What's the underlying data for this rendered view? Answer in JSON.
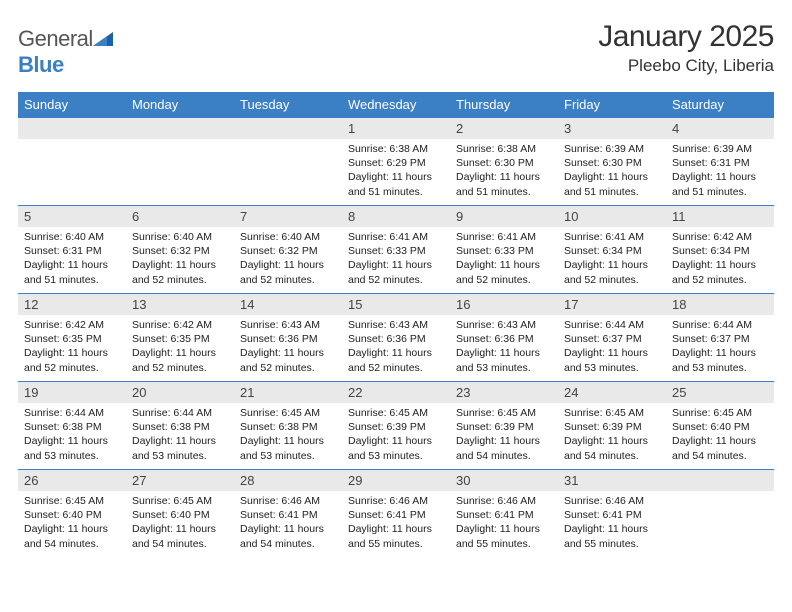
{
  "logo": {
    "text_a": "General",
    "text_b": "Blue"
  },
  "title": "January 2025",
  "location": "Pleebo City, Liberia",
  "colors": {
    "header_bg": "#3b7fc4",
    "header_fg": "#ffffff",
    "daynum_bg": "#e9e9e9",
    "row_border": "#3b7fc4",
    "logo_blue": "#3b7fc4"
  },
  "day_headers": [
    "Sunday",
    "Monday",
    "Tuesday",
    "Wednesday",
    "Thursday",
    "Friday",
    "Saturday"
  ],
  "weeks": [
    [
      {
        "blank": true
      },
      {
        "blank": true
      },
      {
        "blank": true
      },
      {
        "day": "1",
        "sunrise": "6:38 AM",
        "sunset": "6:29 PM",
        "daylight_a": "Daylight: 11 hours",
        "daylight_b": "and 51 minutes."
      },
      {
        "day": "2",
        "sunrise": "6:38 AM",
        "sunset": "6:30 PM",
        "daylight_a": "Daylight: 11 hours",
        "daylight_b": "and 51 minutes."
      },
      {
        "day": "3",
        "sunrise": "6:39 AM",
        "sunset": "6:30 PM",
        "daylight_a": "Daylight: 11 hours",
        "daylight_b": "and 51 minutes."
      },
      {
        "day": "4",
        "sunrise": "6:39 AM",
        "sunset": "6:31 PM",
        "daylight_a": "Daylight: 11 hours",
        "daylight_b": "and 51 minutes."
      }
    ],
    [
      {
        "day": "5",
        "sunrise": "6:40 AM",
        "sunset": "6:31 PM",
        "daylight_a": "Daylight: 11 hours",
        "daylight_b": "and 51 minutes."
      },
      {
        "day": "6",
        "sunrise": "6:40 AM",
        "sunset": "6:32 PM",
        "daylight_a": "Daylight: 11 hours",
        "daylight_b": "and 52 minutes."
      },
      {
        "day": "7",
        "sunrise": "6:40 AM",
        "sunset": "6:32 PM",
        "daylight_a": "Daylight: 11 hours",
        "daylight_b": "and 52 minutes."
      },
      {
        "day": "8",
        "sunrise": "6:41 AM",
        "sunset": "6:33 PM",
        "daylight_a": "Daylight: 11 hours",
        "daylight_b": "and 52 minutes."
      },
      {
        "day": "9",
        "sunrise": "6:41 AM",
        "sunset": "6:33 PM",
        "daylight_a": "Daylight: 11 hours",
        "daylight_b": "and 52 minutes."
      },
      {
        "day": "10",
        "sunrise": "6:41 AM",
        "sunset": "6:34 PM",
        "daylight_a": "Daylight: 11 hours",
        "daylight_b": "and 52 minutes."
      },
      {
        "day": "11",
        "sunrise": "6:42 AM",
        "sunset": "6:34 PM",
        "daylight_a": "Daylight: 11 hours",
        "daylight_b": "and 52 minutes."
      }
    ],
    [
      {
        "day": "12",
        "sunrise": "6:42 AM",
        "sunset": "6:35 PM",
        "daylight_a": "Daylight: 11 hours",
        "daylight_b": "and 52 minutes."
      },
      {
        "day": "13",
        "sunrise": "6:42 AM",
        "sunset": "6:35 PM",
        "daylight_a": "Daylight: 11 hours",
        "daylight_b": "and 52 minutes."
      },
      {
        "day": "14",
        "sunrise": "6:43 AM",
        "sunset": "6:36 PM",
        "daylight_a": "Daylight: 11 hours",
        "daylight_b": "and 52 minutes."
      },
      {
        "day": "15",
        "sunrise": "6:43 AM",
        "sunset": "6:36 PM",
        "daylight_a": "Daylight: 11 hours",
        "daylight_b": "and 52 minutes."
      },
      {
        "day": "16",
        "sunrise": "6:43 AM",
        "sunset": "6:36 PM",
        "daylight_a": "Daylight: 11 hours",
        "daylight_b": "and 53 minutes."
      },
      {
        "day": "17",
        "sunrise": "6:44 AM",
        "sunset": "6:37 PM",
        "daylight_a": "Daylight: 11 hours",
        "daylight_b": "and 53 minutes."
      },
      {
        "day": "18",
        "sunrise": "6:44 AM",
        "sunset": "6:37 PM",
        "daylight_a": "Daylight: 11 hours",
        "daylight_b": "and 53 minutes."
      }
    ],
    [
      {
        "day": "19",
        "sunrise": "6:44 AM",
        "sunset": "6:38 PM",
        "daylight_a": "Daylight: 11 hours",
        "daylight_b": "and 53 minutes."
      },
      {
        "day": "20",
        "sunrise": "6:44 AM",
        "sunset": "6:38 PM",
        "daylight_a": "Daylight: 11 hours",
        "daylight_b": "and 53 minutes."
      },
      {
        "day": "21",
        "sunrise": "6:45 AM",
        "sunset": "6:38 PM",
        "daylight_a": "Daylight: 11 hours",
        "daylight_b": "and 53 minutes."
      },
      {
        "day": "22",
        "sunrise": "6:45 AM",
        "sunset": "6:39 PM",
        "daylight_a": "Daylight: 11 hours",
        "daylight_b": "and 53 minutes."
      },
      {
        "day": "23",
        "sunrise": "6:45 AM",
        "sunset": "6:39 PM",
        "daylight_a": "Daylight: 11 hours",
        "daylight_b": "and 54 minutes."
      },
      {
        "day": "24",
        "sunrise": "6:45 AM",
        "sunset": "6:39 PM",
        "daylight_a": "Daylight: 11 hours",
        "daylight_b": "and 54 minutes."
      },
      {
        "day": "25",
        "sunrise": "6:45 AM",
        "sunset": "6:40 PM",
        "daylight_a": "Daylight: 11 hours",
        "daylight_b": "and 54 minutes."
      }
    ],
    [
      {
        "day": "26",
        "sunrise": "6:45 AM",
        "sunset": "6:40 PM",
        "daylight_a": "Daylight: 11 hours",
        "daylight_b": "and 54 minutes."
      },
      {
        "day": "27",
        "sunrise": "6:45 AM",
        "sunset": "6:40 PM",
        "daylight_a": "Daylight: 11 hours",
        "daylight_b": "and 54 minutes."
      },
      {
        "day": "28",
        "sunrise": "6:46 AM",
        "sunset": "6:41 PM",
        "daylight_a": "Daylight: 11 hours",
        "daylight_b": "and 54 minutes."
      },
      {
        "day": "29",
        "sunrise": "6:46 AM",
        "sunset": "6:41 PM",
        "daylight_a": "Daylight: 11 hours",
        "daylight_b": "and 55 minutes."
      },
      {
        "day": "30",
        "sunrise": "6:46 AM",
        "sunset": "6:41 PM",
        "daylight_a": "Daylight: 11 hours",
        "daylight_b": "and 55 minutes."
      },
      {
        "day": "31",
        "sunrise": "6:46 AM",
        "sunset": "6:41 PM",
        "daylight_a": "Daylight: 11 hours",
        "daylight_b": "and 55 minutes."
      },
      {
        "blank": true
      }
    ]
  ],
  "labels": {
    "sunrise": "Sunrise: ",
    "sunset": "Sunset: "
  }
}
